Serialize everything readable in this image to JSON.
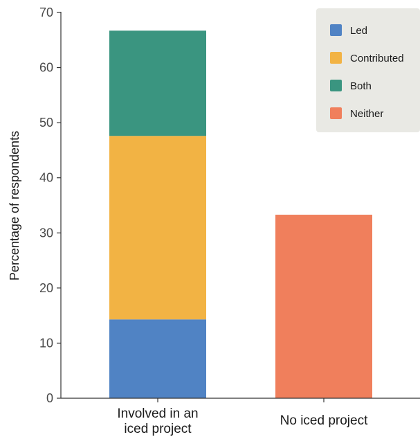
{
  "chart_data": {
    "type": "bar",
    "stacked": true,
    "title": "",
    "xlabel": "",
    "ylabel": "Percentage of respondents",
    "ylim": [
      0,
      70
    ],
    "yticks": [
      0,
      10,
      20,
      30,
      40,
      50,
      60,
      70
    ],
    "grid": false,
    "legend_position": "top-right",
    "categories": [
      [
        "Involved in an",
        "iced project"
      ],
      [
        "No iced project"
      ]
    ],
    "series": [
      {
        "name": "Led",
        "color": "#5083c4",
        "values": [
          14.3,
          0
        ]
      },
      {
        "name": "Contributed",
        "color": "#f2b344",
        "values": [
          33.3,
          0
        ]
      },
      {
        "name": "Both",
        "color": "#3a9580",
        "values": [
          19.1,
          0
        ]
      },
      {
        "name": "Neither",
        "color": "#f07f5c",
        "values": [
          0,
          33.3
        ]
      }
    ]
  }
}
